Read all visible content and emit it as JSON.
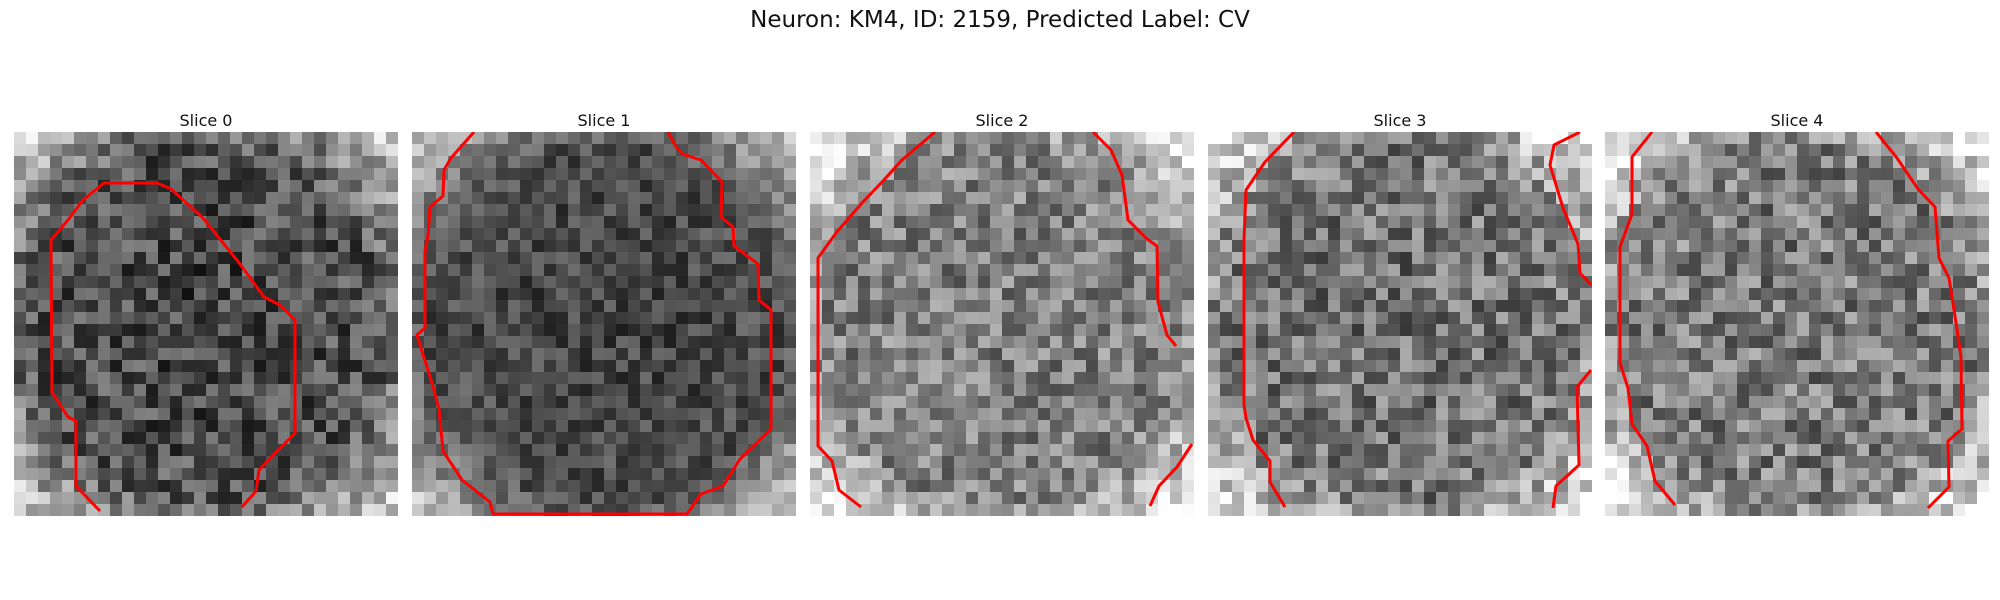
{
  "figure": {
    "title": "Neuron: KM4, ID: 2159, Predicted Label: CV"
  },
  "panels": [
    {
      "title": "Slice 0"
    },
    {
      "title": "Slice 1"
    },
    {
      "title": "Slice 2"
    },
    {
      "title": "Slice 3"
    },
    {
      "title": "Slice 4"
    }
  ],
  "colors": {
    "contour": "#ff0000"
  }
}
